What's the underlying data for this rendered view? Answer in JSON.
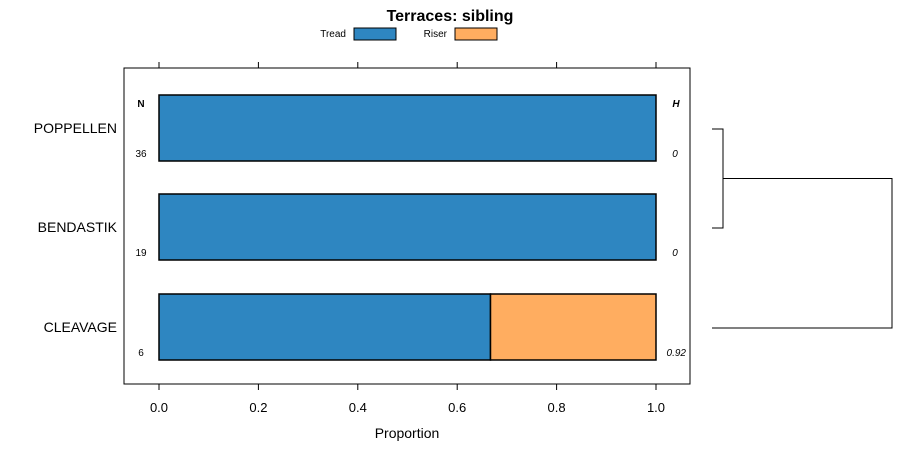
{
  "chart_data": {
    "type": "bar",
    "orientation": "horizontal",
    "stacked": true,
    "title": "Terraces: sibling",
    "xlabel": "Proportion",
    "ylabel": "",
    "xlim": [
      -0.07,
      1.07
    ],
    "x_ticks": [
      "0.0",
      "0.2",
      "0.4",
      "0.6",
      "0.8",
      "1.0"
    ],
    "x_tick_values": [
      0,
      0.2,
      0.4,
      0.6,
      0.8,
      1.0
    ],
    "categories": [
      "POPPELLEN",
      "BENDASTIK",
      "CLEAVAGE"
    ],
    "series": [
      {
        "name": "Tread",
        "color": "#2e86c1",
        "values": [
          1.0,
          1.0,
          0.667
        ]
      },
      {
        "name": "Riser",
        "color": "#ffad60",
        "values": [
          0.0,
          0.0,
          0.333
        ]
      }
    ],
    "n_header": "N",
    "h_header": "H",
    "n_values": [
      "36",
      "19",
      "6"
    ],
    "h_values": [
      "0",
      "0",
      "0.92"
    ],
    "legend": {
      "position": "top",
      "entries": [
        "Tread",
        "Riser"
      ]
    },
    "dendrogram": {
      "merge_order": [
        [
          "POPPELLEN",
          "BENDASTIK"
        ],
        [
          "POPPELLEN+BENDASTIK",
          "CLEAVAGE"
        ]
      ]
    }
  }
}
